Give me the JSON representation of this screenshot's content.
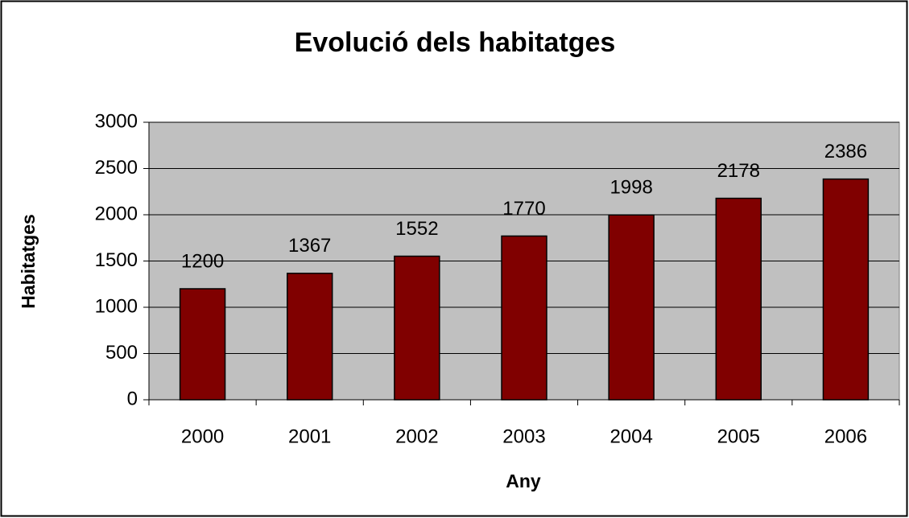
{
  "chart_data": {
    "type": "bar",
    "title": "Evolució dels habitatges",
    "x_label": "Any",
    "y_label": "Habitatges",
    "categories": [
      "2000",
      "2001",
      "2002",
      "2003",
      "2004",
      "2005",
      "2006"
    ],
    "values": [
      1200,
      1367,
      1552,
      1770,
      1998,
      2178,
      2386
    ],
    "color": "#800000",
    "plot_background": "#c0c0c0",
    "ylim": [
      0,
      3000
    ],
    "yticks": [
      0,
      500,
      1000,
      1500,
      2000,
      2500,
      3000
    ],
    "grid": true
  }
}
